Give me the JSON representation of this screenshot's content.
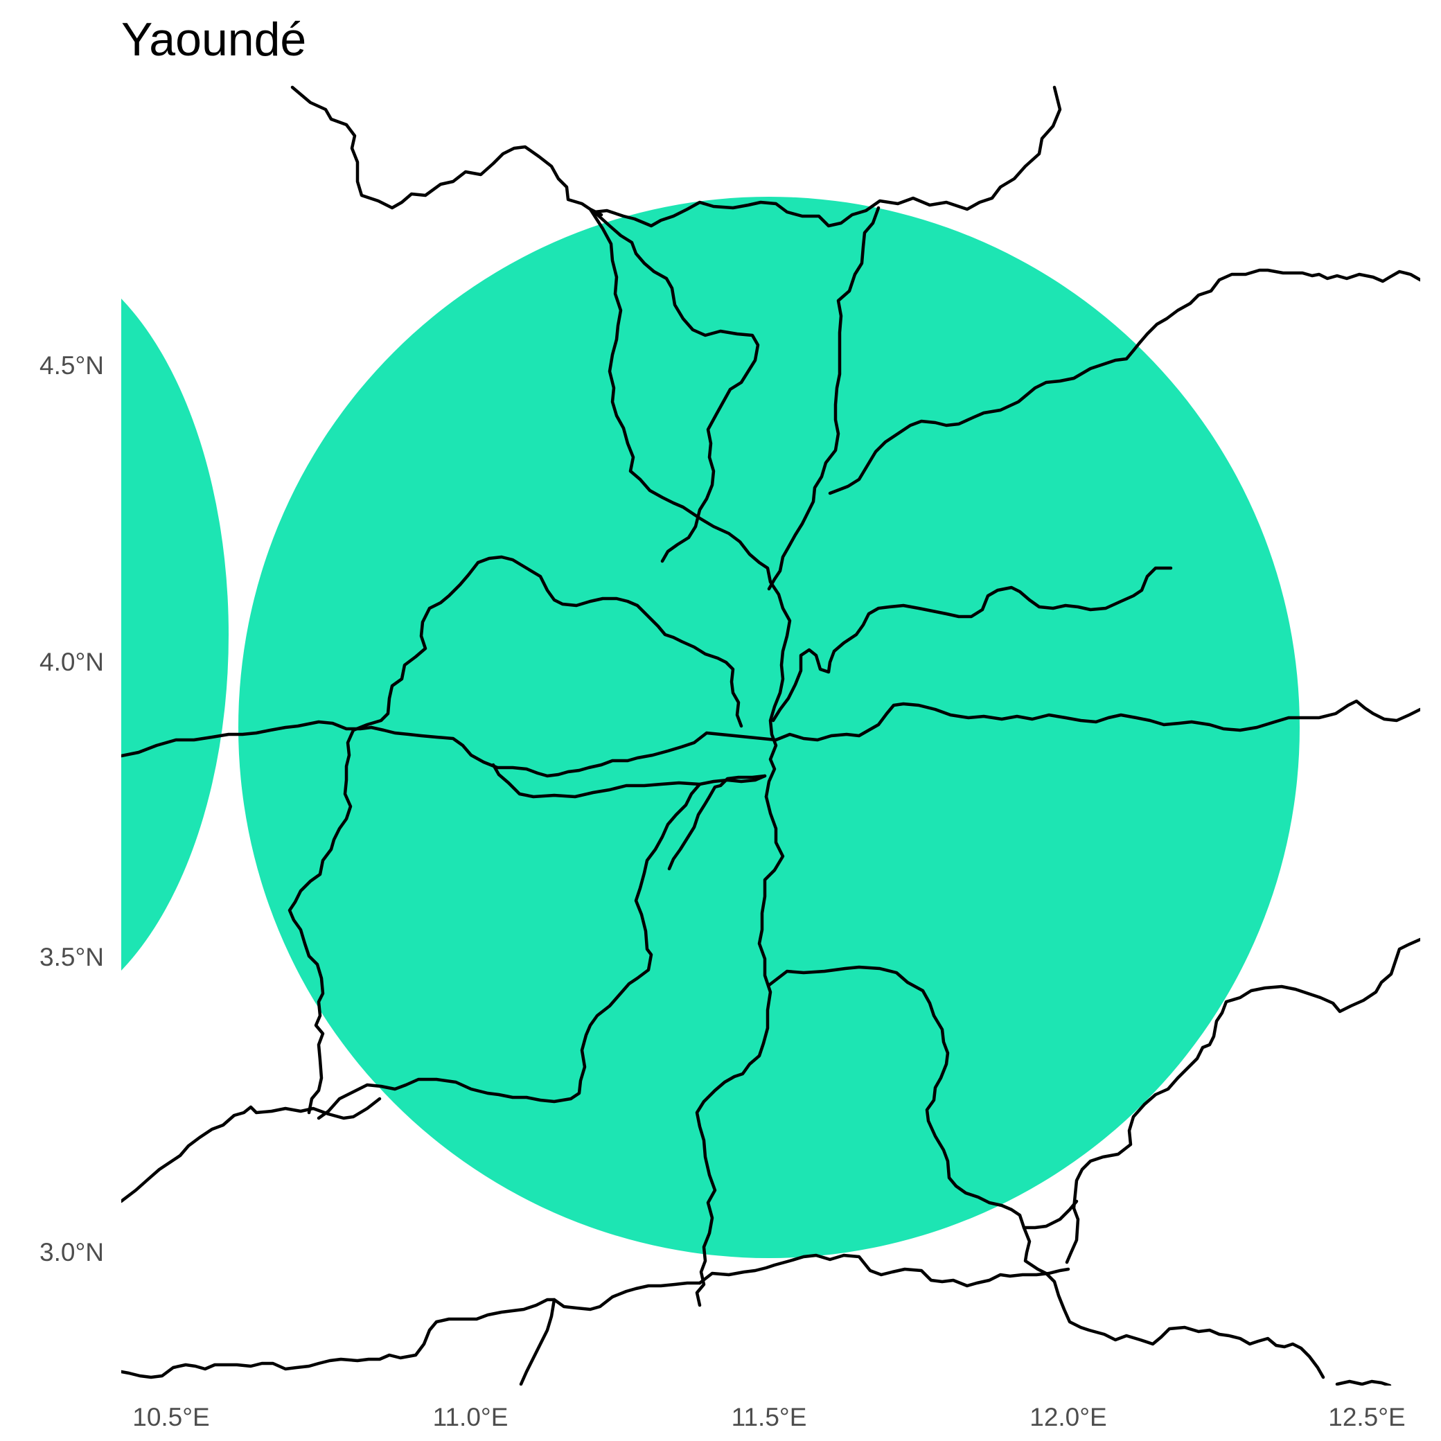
{
  "map": {
    "title": "Yaoundé",
    "zone_fill": "#1de5b3",
    "road_color": "#000000",
    "tick_color": "#4d4d4d"
  },
  "axes": {
    "x_ticks": [
      "10.5°E",
      "11.0°E",
      "11.5°E",
      "12.0°E",
      "12.5°E"
    ],
    "y_ticks": [
      "4.5°N",
      "4.0°N",
      "3.5°N",
      "3.0°N"
    ],
    "x_range": [
      10.43,
      12.61
    ],
    "y_range": [
      2.77,
      4.97
    ],
    "grid": false
  }
}
